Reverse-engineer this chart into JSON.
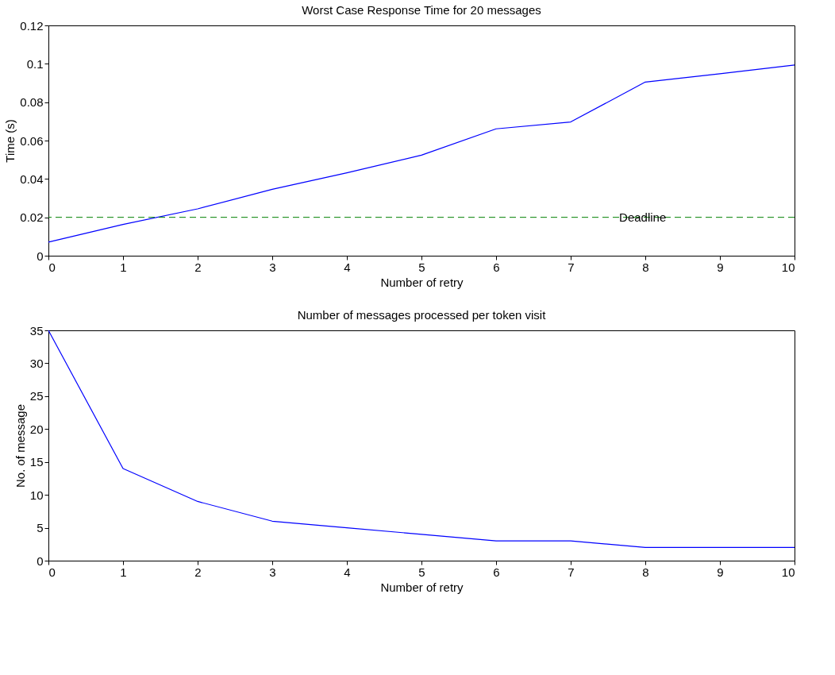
{
  "chart_data": [
    {
      "type": "line",
      "title": "Worst Case Response Time for 20 messages",
      "xlabel": "Number of retry",
      "ylabel": "Time (s)",
      "x": [
        0,
        1,
        2,
        3,
        4,
        5,
        6,
        7,
        8,
        9,
        10
      ],
      "series": [
        {
          "color": "#0000ff",
          "values": [
            0.0071,
            0.0163,
            0.0244,
            0.0346,
            0.0432,
            0.0524,
            0.0661,
            0.0697,
            0.0905,
            0.0948,
            0.0994
          ]
        }
      ],
      "xlim": [
        0,
        10
      ],
      "xticks": [
        0,
        1,
        2,
        3,
        4,
        5,
        6,
        7,
        8,
        9,
        10
      ],
      "ylim": [
        0,
        0.12
      ],
      "yticks": [
        0,
        0.02,
        0.04,
        0.06,
        0.08,
        0.1,
        0.12
      ],
      "grid": false,
      "legend": false,
      "marker": "none",
      "line_style": "solid",
      "ref_lines": [
        {
          "axis": "y",
          "value": 0.02,
          "label": "Deadline",
          "color": "#008000",
          "line_style": "dashed"
        }
      ]
    },
    {
      "type": "line",
      "title": "Number of messages processed per token visit",
      "xlabel": "Number of retry",
      "ylabel": "No. of message",
      "x": [
        0,
        1,
        2,
        3,
        4,
        5,
        6,
        7,
        8,
        9,
        10
      ],
      "series": [
        {
          "color": "#0000ff",
          "values": [
            35,
            14,
            9,
            6,
            5,
            4,
            3,
            3,
            2,
            2,
            2
          ]
        }
      ],
      "xlim": [
        0,
        10
      ],
      "xticks": [
        0,
        1,
        2,
        3,
        4,
        5,
        6,
        7,
        8,
        9,
        10
      ],
      "ylim": [
        0,
        35
      ],
      "yticks": [
        0,
        5,
        10,
        15,
        20,
        25,
        30,
        35
      ],
      "grid": false,
      "legend": false,
      "marker": "none",
      "line_style": "solid"
    }
  ]
}
